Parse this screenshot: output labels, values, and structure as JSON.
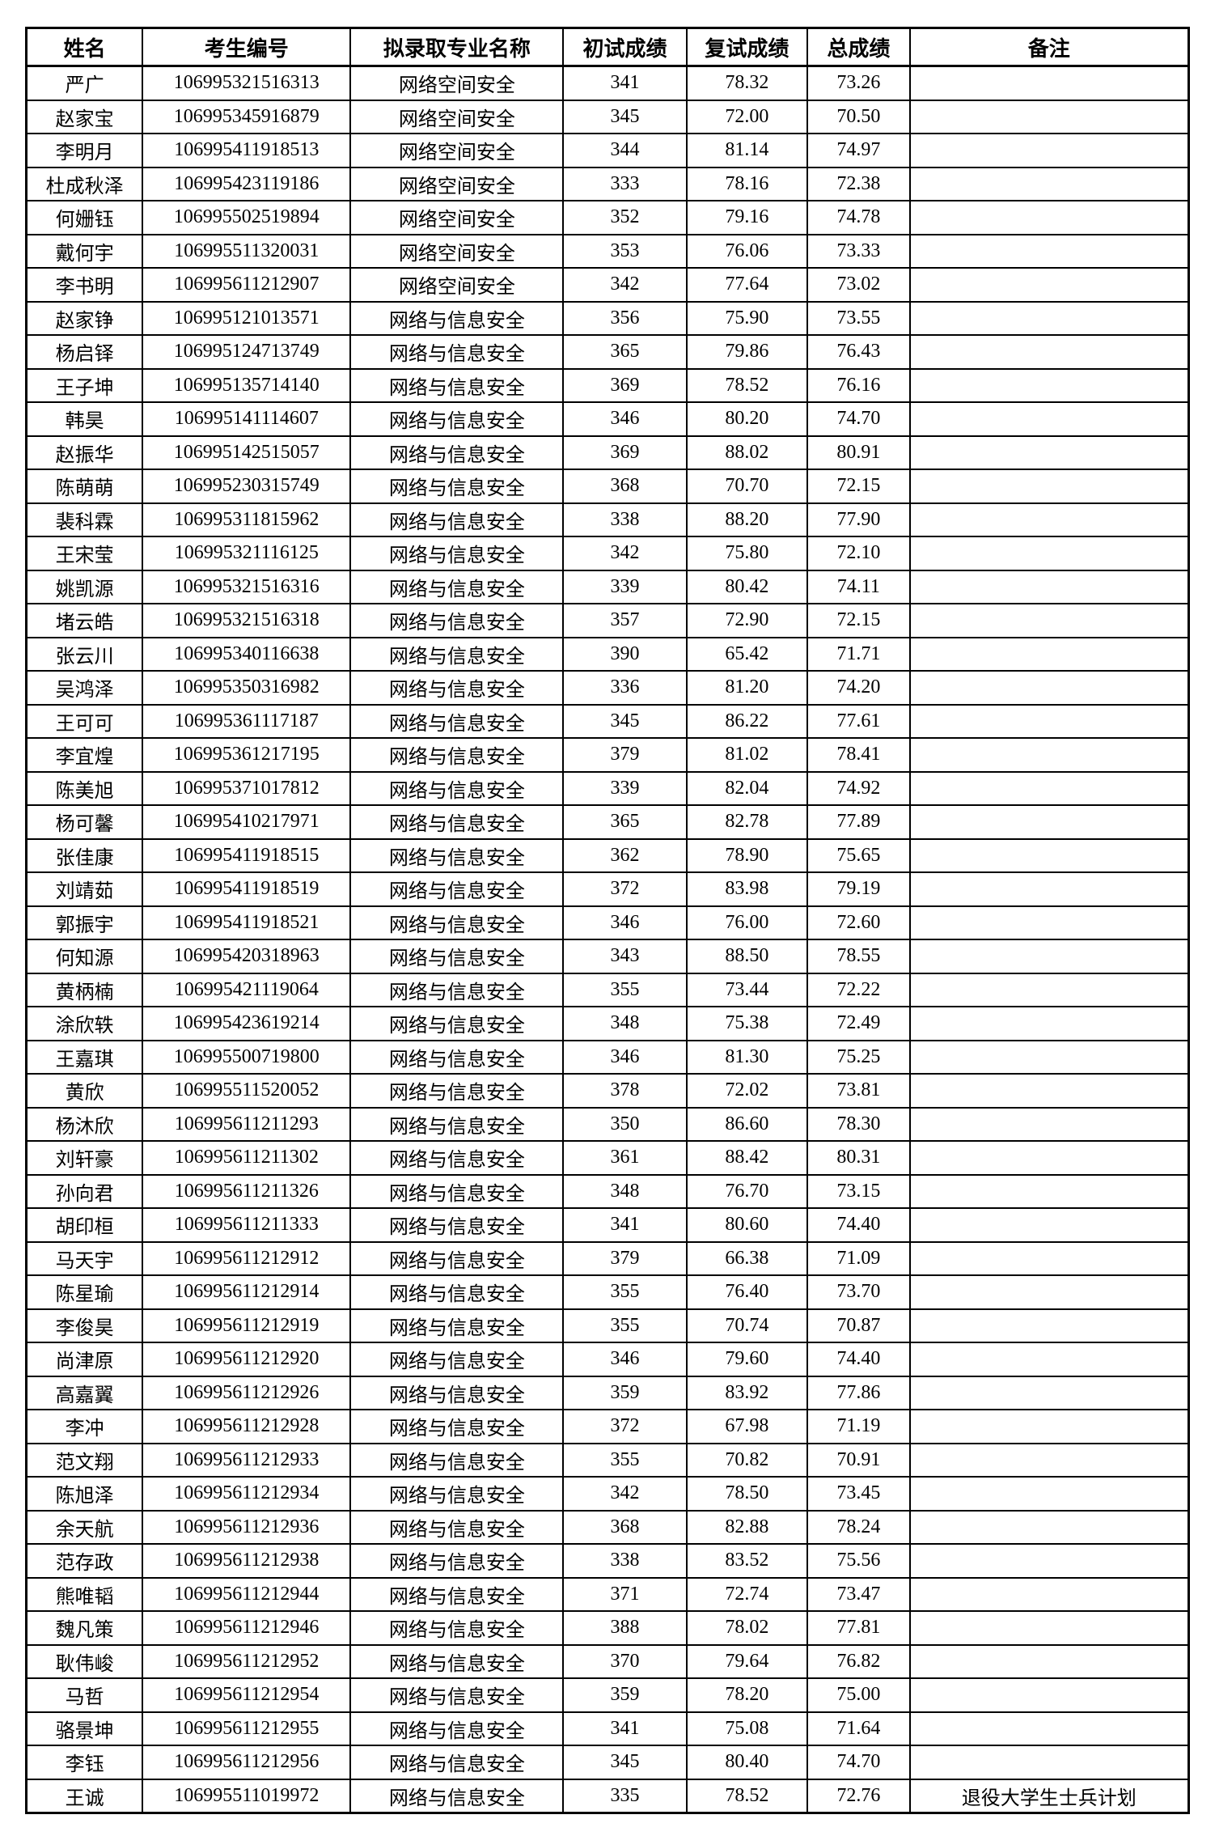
{
  "colors": {
    "background": "#ffffff",
    "border": "#000000",
    "text": "#000000"
  },
  "table": {
    "headers": [
      "姓名",
      "考生编号",
      "拟录取专业名称",
      "初试成绩",
      "复试成绩",
      "总成绩",
      "备注"
    ],
    "rows": [
      [
        "严广",
        "106995321516313",
        "网络空间安全",
        "341",
        "78.32",
        "73.26",
        ""
      ],
      [
        "赵家宝",
        "106995345916879",
        "网络空间安全",
        "345",
        "72.00",
        "70.50",
        ""
      ],
      [
        "李明月",
        "106995411918513",
        "网络空间安全",
        "344",
        "81.14",
        "74.97",
        ""
      ],
      [
        "杜成秋泽",
        "106995423119186",
        "网络空间安全",
        "333",
        "78.16",
        "72.38",
        ""
      ],
      [
        "何姗钰",
        "106995502519894",
        "网络空间安全",
        "352",
        "79.16",
        "74.78",
        ""
      ],
      [
        "戴何宇",
        "106995511320031",
        "网络空间安全",
        "353",
        "76.06",
        "73.33",
        ""
      ],
      [
        "李书明",
        "106995611212907",
        "网络空间安全",
        "342",
        "77.64",
        "73.02",
        ""
      ],
      [
        "赵家铮",
        "106995121013571",
        "网络与信息安全",
        "356",
        "75.90",
        "73.55",
        ""
      ],
      [
        "杨启铎",
        "106995124713749",
        "网络与信息安全",
        "365",
        "79.86",
        "76.43",
        ""
      ],
      [
        "王子坤",
        "106995135714140",
        "网络与信息安全",
        "369",
        "78.52",
        "76.16",
        ""
      ],
      [
        "韩昊",
        "106995141114607",
        "网络与信息安全",
        "346",
        "80.20",
        "74.70",
        ""
      ],
      [
        "赵振华",
        "106995142515057",
        "网络与信息安全",
        "369",
        "88.02",
        "80.91",
        ""
      ],
      [
        "陈萌萌",
        "106995230315749",
        "网络与信息安全",
        "368",
        "70.70",
        "72.15",
        ""
      ],
      [
        "裴科霖",
        "106995311815962",
        "网络与信息安全",
        "338",
        "88.20",
        "77.90",
        ""
      ],
      [
        "王宋莹",
        "106995321116125",
        "网络与信息安全",
        "342",
        "75.80",
        "72.10",
        ""
      ],
      [
        "姚凯源",
        "106995321516316",
        "网络与信息安全",
        "339",
        "80.42",
        "74.11",
        ""
      ],
      [
        "堵云皓",
        "106995321516318",
        "网络与信息安全",
        "357",
        "72.90",
        "72.15",
        ""
      ],
      [
        "张云川",
        "106995340116638",
        "网络与信息安全",
        "390",
        "65.42",
        "71.71",
        ""
      ],
      [
        "吴鸿泽",
        "106995350316982",
        "网络与信息安全",
        "336",
        "81.20",
        "74.20",
        ""
      ],
      [
        "王可可",
        "106995361117187",
        "网络与信息安全",
        "345",
        "86.22",
        "77.61",
        ""
      ],
      [
        "李宜煌",
        "106995361217195",
        "网络与信息安全",
        "379",
        "81.02",
        "78.41",
        ""
      ],
      [
        "陈美旭",
        "106995371017812",
        "网络与信息安全",
        "339",
        "82.04",
        "74.92",
        ""
      ],
      [
        "杨可馨",
        "106995410217971",
        "网络与信息安全",
        "365",
        "82.78",
        "77.89",
        ""
      ],
      [
        "张佳康",
        "106995411918515",
        "网络与信息安全",
        "362",
        "78.90",
        "75.65",
        ""
      ],
      [
        "刘靖茹",
        "106995411918519",
        "网络与信息安全",
        "372",
        "83.98",
        "79.19",
        ""
      ],
      [
        "郭振宇",
        "106995411918521",
        "网络与信息安全",
        "346",
        "76.00",
        "72.60",
        ""
      ],
      [
        "何知源",
        "106995420318963",
        "网络与信息安全",
        "343",
        "88.50",
        "78.55",
        ""
      ],
      [
        "黄柄楠",
        "106995421119064",
        "网络与信息安全",
        "355",
        "73.44",
        "72.22",
        ""
      ],
      [
        "涂欣轶",
        "106995423619214",
        "网络与信息安全",
        "348",
        "75.38",
        "72.49",
        ""
      ],
      [
        "王嘉琪",
        "106995500719800",
        "网络与信息安全",
        "346",
        "81.30",
        "75.25",
        ""
      ],
      [
        "黄欣",
        "106995511520052",
        "网络与信息安全",
        "378",
        "72.02",
        "73.81",
        ""
      ],
      [
        "杨沐欣",
        "106995611211293",
        "网络与信息安全",
        "350",
        "86.60",
        "78.30",
        ""
      ],
      [
        "刘轩豪",
        "106995611211302",
        "网络与信息安全",
        "361",
        "88.42",
        "80.31",
        ""
      ],
      [
        "孙向君",
        "106995611211326",
        "网络与信息安全",
        "348",
        "76.70",
        "73.15",
        ""
      ],
      [
        "胡印桓",
        "106995611211333",
        "网络与信息安全",
        "341",
        "80.60",
        "74.40",
        ""
      ],
      [
        "马天宇",
        "106995611212912",
        "网络与信息安全",
        "379",
        "66.38",
        "71.09",
        ""
      ],
      [
        "陈星瑜",
        "106995611212914",
        "网络与信息安全",
        "355",
        "76.40",
        "73.70",
        ""
      ],
      [
        "李俊昊",
        "106995611212919",
        "网络与信息安全",
        "355",
        "70.74",
        "70.87",
        ""
      ],
      [
        "尚津原",
        "106995611212920",
        "网络与信息安全",
        "346",
        "79.60",
        "74.40",
        ""
      ],
      [
        "高嘉翼",
        "106995611212926",
        "网络与信息安全",
        "359",
        "83.92",
        "77.86",
        ""
      ],
      [
        "李冲",
        "106995611212928",
        "网络与信息安全",
        "372",
        "67.98",
        "71.19",
        ""
      ],
      [
        "范文翔",
        "106995611212933",
        "网络与信息安全",
        "355",
        "70.82",
        "70.91",
        ""
      ],
      [
        "陈旭泽",
        "106995611212934",
        "网络与信息安全",
        "342",
        "78.50",
        "73.45",
        ""
      ],
      [
        "余天航",
        "106995611212936",
        "网络与信息安全",
        "368",
        "82.88",
        "78.24",
        ""
      ],
      [
        "范存政",
        "106995611212938",
        "网络与信息安全",
        "338",
        "83.52",
        "75.56",
        ""
      ],
      [
        "熊唯韬",
        "106995611212944",
        "网络与信息安全",
        "371",
        "72.74",
        "73.47",
        ""
      ],
      [
        "魏凡策",
        "106995611212946",
        "网络与信息安全",
        "388",
        "78.02",
        "77.81",
        ""
      ],
      [
        "耿伟峻",
        "106995611212952",
        "网络与信息安全",
        "370",
        "79.64",
        "76.82",
        ""
      ],
      [
        "马哲",
        "106995611212954",
        "网络与信息安全",
        "359",
        "78.20",
        "75.00",
        ""
      ],
      [
        "骆景坤",
        "106995611212955",
        "网络与信息安全",
        "341",
        "75.08",
        "71.64",
        ""
      ],
      [
        "李钰",
        "106995611212956",
        "网络与信息安全",
        "345",
        "80.40",
        "74.70",
        ""
      ],
      [
        "王诚",
        "106995511019972",
        "网络与信息安全",
        "335",
        "78.52",
        "72.76",
        "退役大学生士兵计划"
      ]
    ]
  }
}
